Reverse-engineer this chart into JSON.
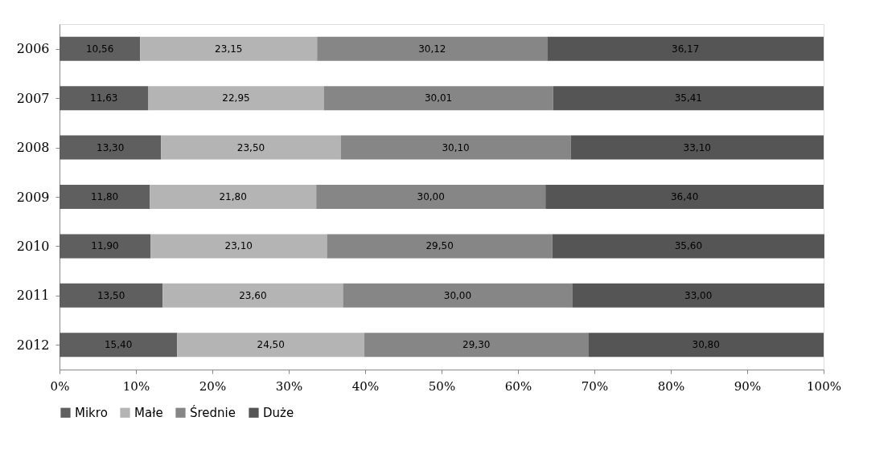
{
  "chart_data": {
    "type": "bar",
    "orientation": "horizontal",
    "stacked": true,
    "categories": [
      "2006",
      "2007",
      "2008",
      "2009",
      "2010",
      "2011",
      "2012"
    ],
    "series": [
      {
        "name": "Mikro",
        "color": "#5f5f5f",
        "values": [
          10.56,
          11.63,
          13.3,
          11.8,
          11.9,
          13.5,
          15.4
        ],
        "value_labels": [
          "10,56",
          "11,63",
          "13,30",
          "11,80",
          "11,90",
          "13,50",
          "15,40"
        ]
      },
      {
        "name": "Małe",
        "color": "#b4b4b4",
        "values": [
          23.15,
          22.95,
          23.5,
          21.8,
          23.1,
          23.6,
          24.5
        ],
        "value_labels": [
          "23,15",
          "22,95",
          "23,50",
          "21,80",
          "23,10",
          "23,60",
          "24,50"
        ]
      },
      {
        "name": "Średnie",
        "color": "#868686",
        "values": [
          30.12,
          30.01,
          30.1,
          30.0,
          29.5,
          30.0,
          29.3
        ],
        "value_labels": [
          "30,12",
          "30,01",
          "30,10",
          "30,00",
          "29,50",
          "30,00",
          "29,30"
        ]
      },
      {
        "name": "Duże",
        "color": "#555555",
        "values": [
          36.17,
          35.41,
          33.1,
          36.4,
          35.6,
          33.0,
          30.8
        ],
        "value_labels": [
          "36,17",
          "35,41",
          "33,10",
          "36,40",
          "35,60",
          "33,00",
          "30,80"
        ]
      }
    ],
    "xlim": [
      0,
      100
    ],
    "xticks": [
      {
        "value": 0,
        "label": "0%"
      },
      {
        "value": 10,
        "label": "10%"
      },
      {
        "value": 20,
        "label": "20%"
      },
      {
        "value": 30,
        "label": "30%"
      },
      {
        "value": 40,
        "label": "40%"
      },
      {
        "value": 50,
        "label": "50%"
      },
      {
        "value": 60,
        "label": "60%"
      },
      {
        "value": 70,
        "label": "70%"
      },
      {
        "value": 80,
        "label": "80%"
      },
      {
        "value": 90,
        "label": "90%"
      },
      {
        "value": 100,
        "label": "100%"
      }
    ],
    "grid": false,
    "legend": "bottom"
  }
}
